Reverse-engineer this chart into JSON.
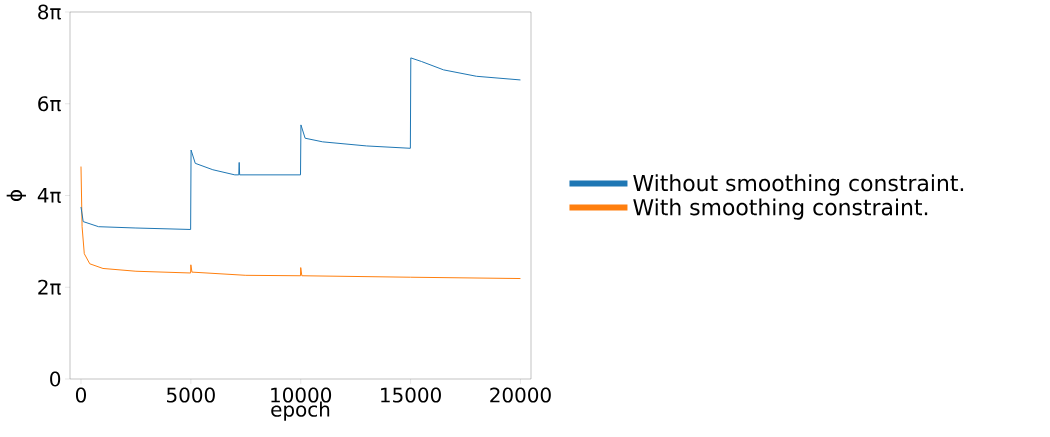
{
  "chart_data": {
    "type": "line",
    "xlabel": "epoch",
    "ylabel": "ϕ",
    "xlim": [
      -500,
      20480
    ],
    "ylim": [
      0,
      25.133
    ],
    "xticks": [
      0,
      5000,
      10000,
      15000,
      20000
    ],
    "yticks": [
      0,
      {
        "value": 6.283,
        "label": "2π"
      },
      {
        "value": 12.566,
        "label": "4π"
      },
      {
        "value": 18.85,
        "label": "6π"
      },
      {
        "value": 25.133,
        "label": "8π"
      }
    ],
    "legend": "right",
    "series": [
      {
        "name": "Without smoothing constraint.",
        "color": "#1f77b4",
        "x": [
          0,
          100,
          800,
          2500,
          4990,
          5010,
          5200,
          6000,
          7000,
          7180,
          7200,
          7220,
          9000,
          9990,
          10010,
          10200,
          11000,
          13000,
          14990,
          15010,
          15500,
          16500,
          18000,
          20000
        ],
        "values": [
          11.78,
          10.78,
          10.43,
          10.34,
          10.24,
          15.68,
          14.77,
          14.33,
          13.98,
          13.98,
          14.83,
          13.98,
          13.98,
          13.98,
          17.4,
          16.49,
          16.24,
          15.96,
          15.8,
          21.99,
          21.74,
          21.17,
          20.73,
          20.48
        ]
      },
      {
        "name": "With smoothing constraint.",
        "color": "#ff7f0e",
        "x": [
          0,
          50,
          150,
          400,
          1000,
          2500,
          4990,
          5000,
          5050,
          7500,
          9990,
          10000,
          10050,
          15000,
          20000
        ],
        "values": [
          14.55,
          10.43,
          8.58,
          7.89,
          7.57,
          7.38,
          7.26,
          7.82,
          7.32,
          7.1,
          7.07,
          7.63,
          7.07,
          6.97,
          6.88
        ]
      }
    ]
  }
}
